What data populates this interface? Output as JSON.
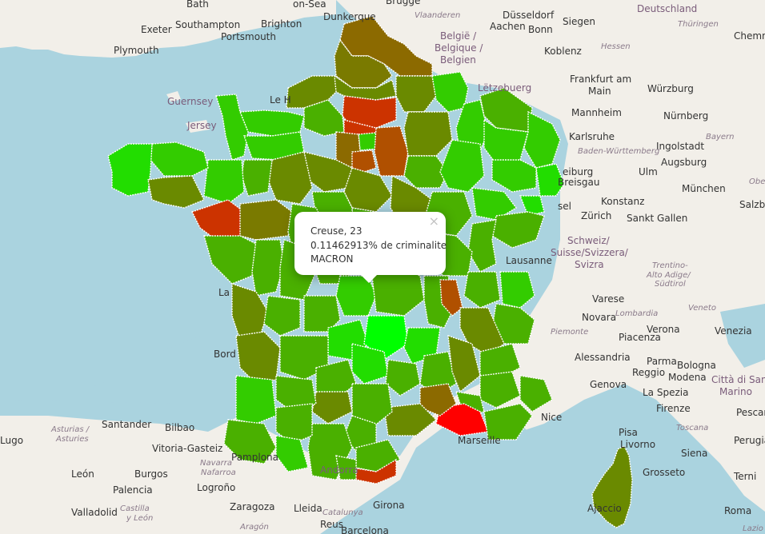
{
  "popup": {
    "title": "Creuse, 23",
    "rate": "0.11462913% de criminalite",
    "candidate": "MACRON",
    "close_label": "×"
  },
  "map": {
    "place_labels": [
      {
        "text": "Bath",
        "kind": "city"
      },
      {
        "text": "on-Sea",
        "kind": "city"
      },
      {
        "text": "Dunkerque",
        "kind": "city"
      },
      {
        "text": "Brugge",
        "kind": "city"
      },
      {
        "text": "Vlaanderen",
        "kind": "region"
      },
      {
        "text": "Düsseldorf",
        "kind": "city"
      },
      {
        "text": "Exeter",
        "kind": "city"
      },
      {
        "text": "Southampton",
        "kind": "city"
      },
      {
        "text": "Brighton",
        "kind": "city"
      },
      {
        "text": "Portsmouth",
        "kind": "city"
      },
      {
        "text": "Plymouth",
        "kind": "city"
      },
      {
        "text": "België /",
        "kind": "country"
      },
      {
        "text": "Belgique /",
        "kind": "country"
      },
      {
        "text": "Belgien",
        "kind": "country"
      },
      {
        "text": "Aachen",
        "kind": "city"
      },
      {
        "text": "Bonn",
        "kind": "city"
      },
      {
        "text": "Siegen",
        "kind": "city"
      },
      {
        "text": "Deutschland",
        "kind": "country"
      },
      {
        "text": "Thüringen",
        "kind": "region"
      },
      {
        "text": "Chemni",
        "kind": "city"
      },
      {
        "text": "Koblenz",
        "kind": "city"
      },
      {
        "text": "Hessen",
        "kind": "region"
      },
      {
        "text": "Lëtzebuerg",
        "kind": "country"
      },
      {
        "text": "Frankfurt am",
        "kind": "city"
      },
      {
        "text": "Main",
        "kind": "city"
      },
      {
        "text": "Würzburg",
        "kind": "city"
      },
      {
        "text": "Guernsey",
        "kind": "country"
      },
      {
        "text": "Jersey",
        "kind": "country"
      },
      {
        "text": "Le H",
        "kind": "city"
      },
      {
        "text": "Mannheim",
        "kind": "city"
      },
      {
        "text": "Nürnberg",
        "kind": "city"
      },
      {
        "text": "Karlsruhe",
        "kind": "city"
      },
      {
        "text": "Bayern",
        "kind": "region"
      },
      {
        "text": "Ingolstadt",
        "kind": "city"
      },
      {
        "text": "Baden-Württemberg",
        "kind": "region"
      },
      {
        "text": "Augsburg",
        "kind": "city"
      },
      {
        "text": "Ulm",
        "kind": "city"
      },
      {
        "text": "eiburg",
        "kind": "city"
      },
      {
        "text": "Breisgau",
        "kind": "city"
      },
      {
        "text": "München",
        "kind": "city"
      },
      {
        "text": "Obe",
        "kind": "region"
      },
      {
        "text": "Konstanz",
        "kind": "city"
      },
      {
        "text": "sel",
        "kind": "city"
      },
      {
        "text": "Zürich",
        "kind": "city"
      },
      {
        "text": "Sankt Gallen",
        "kind": "city"
      },
      {
        "text": "Salzbu",
        "kind": "city"
      },
      {
        "text": "Schweiz/",
        "kind": "country"
      },
      {
        "text": "Suisse/Svizzera/",
        "kind": "country"
      },
      {
        "text": "Svizra",
        "kind": "country"
      },
      {
        "text": "Lausanne",
        "kind": "city"
      },
      {
        "text": "Trentino-",
        "kind": "region"
      },
      {
        "text": "Alto Adige/",
        "kind": "region"
      },
      {
        "text": "Südtirol",
        "kind": "region"
      },
      {
        "text": "La",
        "kind": "city"
      },
      {
        "text": "Varese",
        "kind": "city"
      },
      {
        "text": "Lombardia",
        "kind": "region"
      },
      {
        "text": "Veneto",
        "kind": "region"
      },
      {
        "text": "Novara",
        "kind": "city"
      },
      {
        "text": "Verona",
        "kind": "city"
      },
      {
        "text": "Venezia",
        "kind": "city"
      },
      {
        "text": "Piemonte",
        "kind": "region"
      },
      {
        "text": "Piacenza",
        "kind": "city"
      },
      {
        "text": "Bord",
        "kind": "city"
      },
      {
        "text": "Alessandria",
        "kind": "city"
      },
      {
        "text": "Parma",
        "kind": "city"
      },
      {
        "text": "Bologna",
        "kind": "city"
      },
      {
        "text": "Città di San",
        "kind": "country"
      },
      {
        "text": "Marino",
        "kind": "country"
      },
      {
        "text": "Genova",
        "kind": "city"
      },
      {
        "text": "La Spezia",
        "kind": "city"
      },
      {
        "text": "Firenze",
        "kind": "city"
      },
      {
        "text": "Toscana",
        "kind": "region"
      },
      {
        "text": "Siena",
        "kind": "city"
      },
      {
        "text": "Perugia",
        "kind": "city"
      },
      {
        "text": "Santander",
        "kind": "city"
      },
      {
        "text": "Bilbao",
        "kind": "city"
      },
      {
        "text": "Asturias /",
        "kind": "region"
      },
      {
        "text": "Asturies",
        "kind": "region"
      },
      {
        "text": "Lugo",
        "kind": "city"
      },
      {
        "text": "Vitoria-Gasteiz",
        "kind": "city"
      },
      {
        "text": "Navarra",
        "kind": "region"
      },
      {
        "text": "Nafarroa",
        "kind": "region"
      },
      {
        "text": "León",
        "kind": "city"
      },
      {
        "text": "Burgos",
        "kind": "city"
      },
      {
        "text": "Pamplona",
        "kind": "city"
      },
      {
        "text": "Logroño",
        "kind": "city"
      },
      {
        "text": "Andorra",
        "kind": "country"
      },
      {
        "text": "Palencia",
        "kind": "city"
      },
      {
        "text": "Castilla",
        "kind": "region"
      },
      {
        "text": "y León",
        "kind": "region"
      },
      {
        "text": "Valladolid",
        "kind": "city"
      },
      {
        "text": "Zaragoza",
        "kind": "city"
      },
      {
        "text": "Lleida",
        "kind": "city"
      },
      {
        "text": "Catalunya",
        "kind": "region"
      },
      {
        "text": "Girona",
        "kind": "city"
      },
      {
        "text": "Aragón",
        "kind": "region"
      },
      {
        "text": "Reus",
        "kind": "city"
      },
      {
        "text": "Barcelona",
        "kind": "city"
      },
      {
        "text": "Marseille",
        "kind": "city"
      },
      {
        "text": "Nice",
        "kind": "city"
      },
      {
        "text": "Ajaccio",
        "kind": "city"
      },
      {
        "text": "Terni",
        "kind": "city"
      },
      {
        "text": "Roma",
        "kind": "city"
      },
      {
        "text": "Lazio",
        "kind": "region"
      },
      {
        "text": "Pescara",
        "kind": "city"
      },
      {
        "text": "Grosseto",
        "kind": "city"
      },
      {
        "text": "Pisa",
        "kind": "city"
      },
      {
        "text": "Livorno",
        "kind": "city"
      },
      {
        "text": "Reggio",
        "kind": "city"
      },
      {
        "text": "Modena",
        "kind": "city"
      }
    ],
    "colors": {
      "sea": "#aad3df",
      "land": "#f2efe9",
      "high": "#ff0000",
      "low": "#00ff00"
    }
  }
}
